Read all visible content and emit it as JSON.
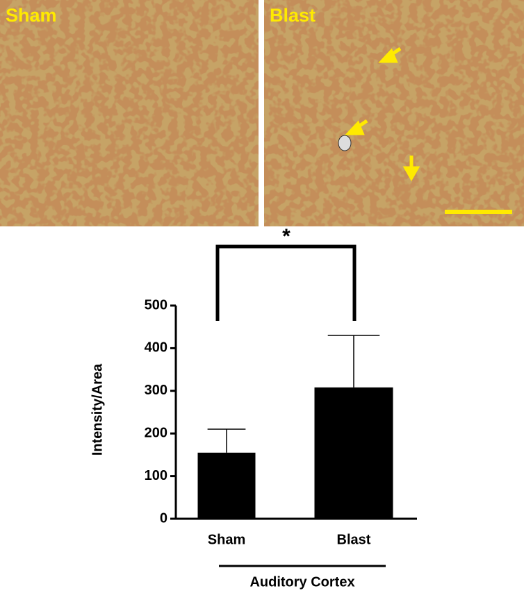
{
  "panels": [
    {
      "label": "Sham"
    },
    {
      "label": "Blast"
    }
  ],
  "chart_data": {
    "type": "bar",
    "categories": [
      "Sham",
      "Blast"
    ],
    "values": [
      155,
      308
    ],
    "errors": [
      55,
      122
    ],
    "color": "#000000",
    "ylabel": "Intensity/Area",
    "group_label": "Auditory Cortex",
    "significance": "*",
    "ylim": [
      0,
      500
    ],
    "yticks": [
      0,
      100,
      200,
      300,
      400,
      500
    ]
  }
}
